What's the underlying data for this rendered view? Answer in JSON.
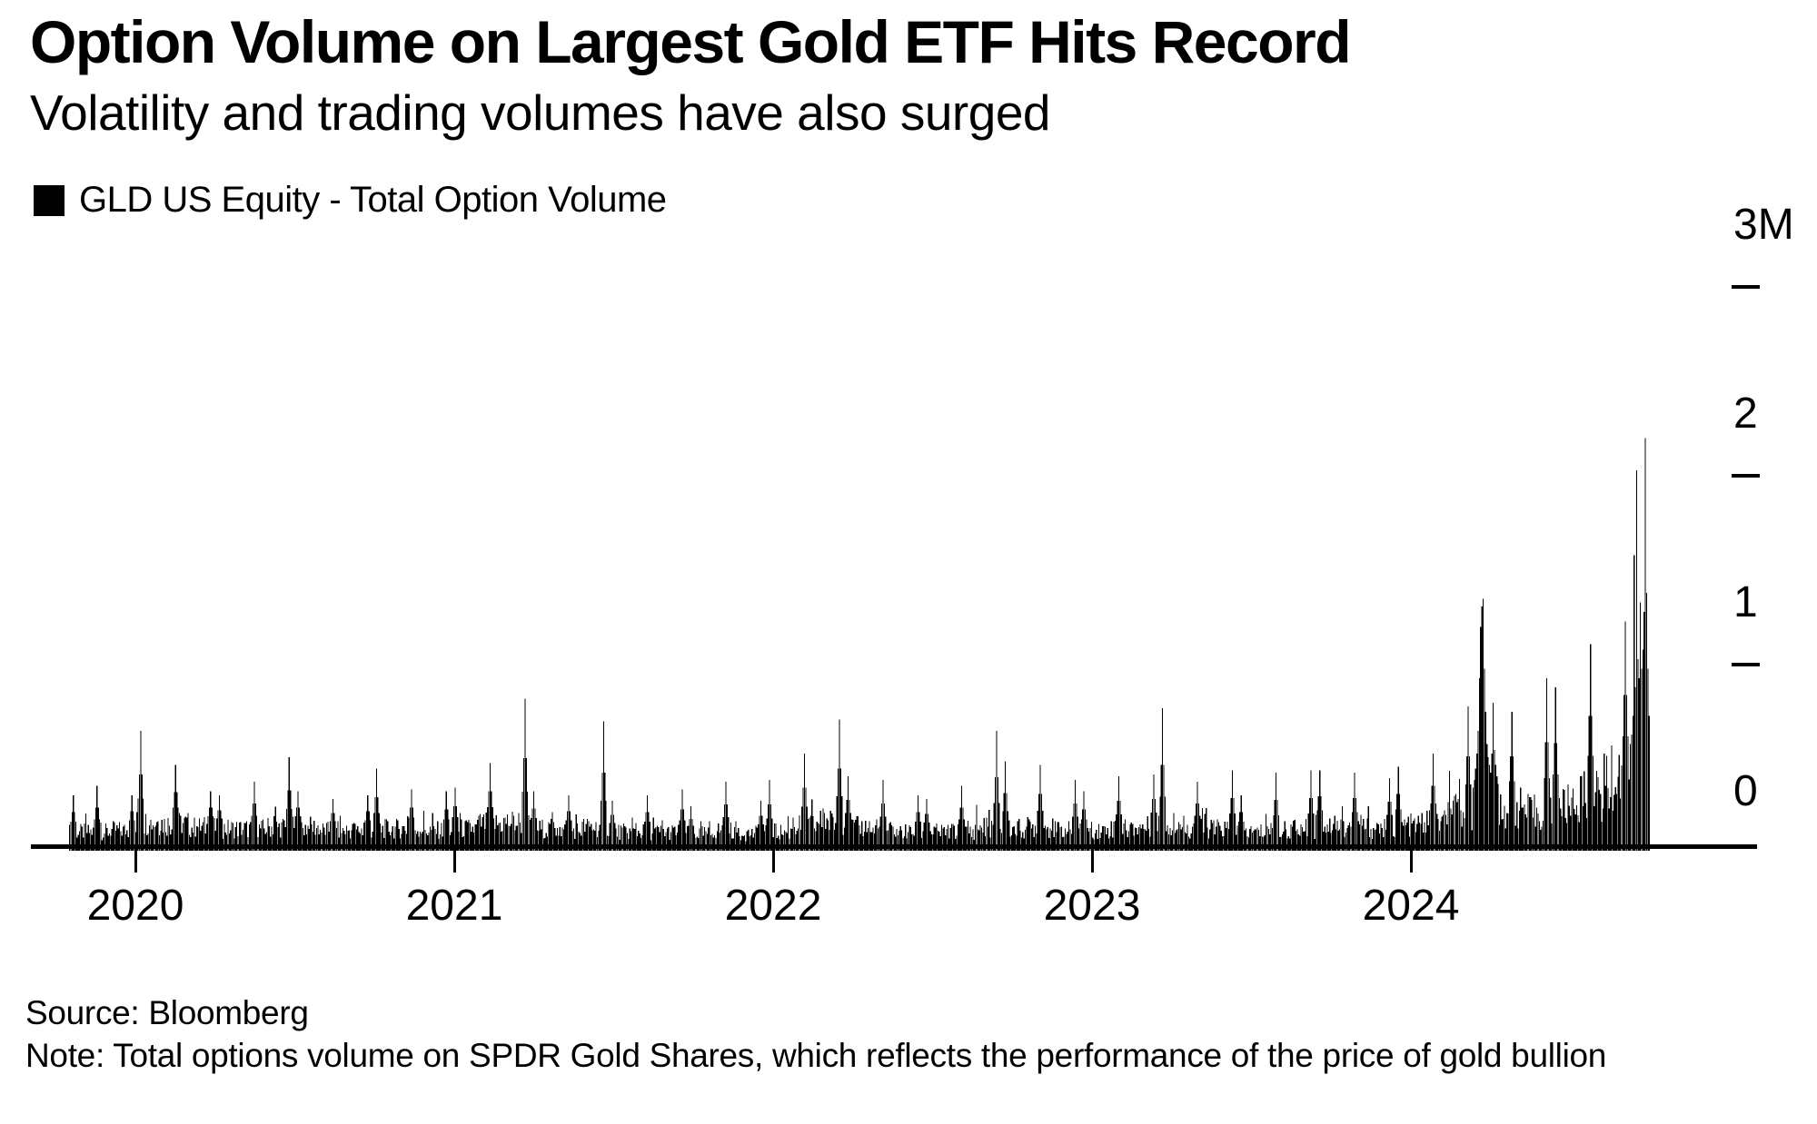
{
  "title": "Option Volume on Largest Gold ETF Hits Record",
  "subtitle": "Volatility and trading volumes have also surged",
  "legend": {
    "label": "GLD US Equity - Total Option Volume",
    "swatch_color": "#000000"
  },
  "footer": {
    "source": "Source: Bloomberg",
    "note": "Note: Total options volume on SPDR Gold Shares, which reflects the performance of the price of gold bullion"
  },
  "chart_data": {
    "type": "bar",
    "title": "GLD US Equity - Total Option Volume",
    "unit": "option contracts, millions",
    "bar_color": "#000000",
    "background_color": "#ffffff",
    "grid": false,
    "legend_position": "top-left",
    "ylim": [
      0,
      3
    ],
    "y_axis_side": "right",
    "y_ticks": [
      {
        "label": "3M",
        "value": 3
      },
      {
        "label": "2",
        "value": 2
      },
      {
        "label": "1",
        "value": 1
      },
      {
        "label": "0",
        "value": 0
      }
    ],
    "x_axis_years": [
      "2020",
      "2021",
      "2022",
      "2023",
      "2024"
    ],
    "x_range": [
      "2019-10",
      "2024-10"
    ],
    "record_value_millions": 2.17,
    "record_position": "end of series (October 2024)",
    "monthly_series": [
      {
        "m": "2019-10",
        "t": 0.1,
        "p": 0.28,
        "d": 12
      },
      {
        "m": "2019-11",
        "t": 0.1,
        "p": 0.33
      },
      {
        "m": "2019-12",
        "t": 0.11,
        "p": 0.28
      },
      {
        "m": "2020-01",
        "t": 0.16,
        "p": 0.62
      },
      {
        "m": "2020-02",
        "t": 0.15,
        "p": 0.44
      },
      {
        "m": "2020-03",
        "t": 0.13,
        "p": 0.3
      },
      {
        "m": "2020-04",
        "t": 0.12,
        "p": 0.28
      },
      {
        "m": "2020-05",
        "t": 0.12,
        "p": 0.35
      },
      {
        "m": "2020-06",
        "t": 0.13,
        "p": 0.48
      },
      {
        "m": "2020-07",
        "t": 0.13,
        "p": 0.3
      },
      {
        "m": "2020-08",
        "t": 0.11,
        "p": 0.26
      },
      {
        "m": "2020-09",
        "t": 0.11,
        "p": 0.28
      },
      {
        "m": "2020-10",
        "t": 0.12,
        "p": 0.42
      },
      {
        "m": "2020-11",
        "t": 0.12,
        "p": 0.31
      },
      {
        "m": "2020-12",
        "t": 0.11,
        "p": 0.3
      },
      {
        "m": "2021-01",
        "t": 0.12,
        "p": 0.32
      },
      {
        "m": "2021-02",
        "t": 0.15,
        "p": 0.45
      },
      {
        "m": "2021-03",
        "t": 0.16,
        "p": 0.79
      },
      {
        "m": "2021-04",
        "t": 0.12,
        "p": 0.3
      },
      {
        "m": "2021-05",
        "t": 0.11,
        "p": 0.28
      },
      {
        "m": "2021-06",
        "t": 0.13,
        "p": 0.67
      },
      {
        "m": "2021-07",
        "t": 0.1,
        "p": 0.25
      },
      {
        "m": "2021-08",
        "t": 0.1,
        "p": 0.28
      },
      {
        "m": "2021-09",
        "t": 0.1,
        "p": 0.31
      },
      {
        "m": "2021-10",
        "t": 0.09,
        "p": 0.22
      },
      {
        "m": "2021-11",
        "t": 0.11,
        "p": 0.35
      },
      {
        "m": "2021-12",
        "t": 0.09,
        "p": 0.25
      },
      {
        "m": "2022-01",
        "t": 0.1,
        "p": 0.36
      },
      {
        "m": "2022-02",
        "t": 0.14,
        "p": 0.5
      },
      {
        "m": "2022-03",
        "t": 0.16,
        "p": 0.68
      },
      {
        "m": "2022-04",
        "t": 0.13,
        "p": 0.38
      },
      {
        "m": "2022-05",
        "t": 0.11,
        "p": 0.36
      },
      {
        "m": "2022-06",
        "t": 0.1,
        "p": 0.28
      },
      {
        "m": "2022-07",
        "t": 0.1,
        "p": 0.26
      },
      {
        "m": "2022-08",
        "t": 0.1,
        "p": 0.33
      },
      {
        "m": "2022-09",
        "t": 0.13,
        "p": 0.62
      },
      {
        "m": "2022-10",
        "t": 0.12,
        "p": 0.46
      },
      {
        "m": "2022-11",
        "t": 0.13,
        "p": 0.44
      },
      {
        "m": "2022-12",
        "t": 0.11,
        "p": 0.36
      },
      {
        "m": "2023-01",
        "t": 0.11,
        "p": 0.3
      },
      {
        "m": "2023-02",
        "t": 0.12,
        "p": 0.38
      },
      {
        "m": "2023-03",
        "t": 0.13,
        "p": 0.39
      },
      {
        "m": "2023-04",
        "t": 0.14,
        "p": 0.74
      },
      {
        "m": "2023-05",
        "t": 0.12,
        "p": 0.35
      },
      {
        "m": "2023-06",
        "t": 0.12,
        "p": 0.41
      },
      {
        "m": "2023-07",
        "t": 0.1,
        "p": 0.28
      },
      {
        "m": "2023-08",
        "t": 0.11,
        "p": 0.4
      },
      {
        "m": "2023-09",
        "t": 0.12,
        "p": 0.41
      },
      {
        "m": "2023-10",
        "t": 0.14,
        "p": 0.41
      },
      {
        "m": "2023-11",
        "t": 0.13,
        "p": 0.4
      },
      {
        "m": "2023-12",
        "t": 0.12,
        "p": 0.37
      },
      {
        "m": "2024-01",
        "t": 0.14,
        "p": 0.43
      },
      {
        "m": "2024-02",
        "t": 0.16,
        "p": 0.5
      },
      {
        "m": "2024-03",
        "t": 0.22,
        "p": 0.75
      },
      {
        "m": "2024-04",
        "values": [
          0.32,
          0.36,
          0.42,
          0.5,
          0.62,
          0.9,
          1.17,
          1.28,
          1.32,
          0.95,
          0.72,
          0.55,
          0.48,
          0.44,
          0.4,
          0.5,
          0.77,
          0.52,
          0.44,
          0.38,
          0.34
        ]
      },
      {
        "m": "2024-05",
        "t": 0.25,
        "p": 0.72
      },
      {
        "m": "2024-06",
        "t": 0.22,
        "p": 0.9
      },
      {
        "m": "2024-07",
        "t": 0.26,
        "p": 0.85
      },
      {
        "m": "2024-08",
        "t": 0.32,
        "p": 1.08
      },
      {
        "m": "2024-09",
        "t": 0.42,
        "p": 1.2
      },
      {
        "m": "2024-10",
        "values": [
          0.55,
          0.6,
          0.7,
          1.55,
          0.85,
          2.0,
          1.0,
          0.9,
          1.3,
          0.95,
          1.05,
          1.25,
          2.17,
          1.35,
          0.95,
          0.7
        ]
      }
    ],
    "series_notes": "t = typical daily volume (M), p = monthly peak daily volume (M); explicit values arrays are estimated daily volumes in millions"
  }
}
